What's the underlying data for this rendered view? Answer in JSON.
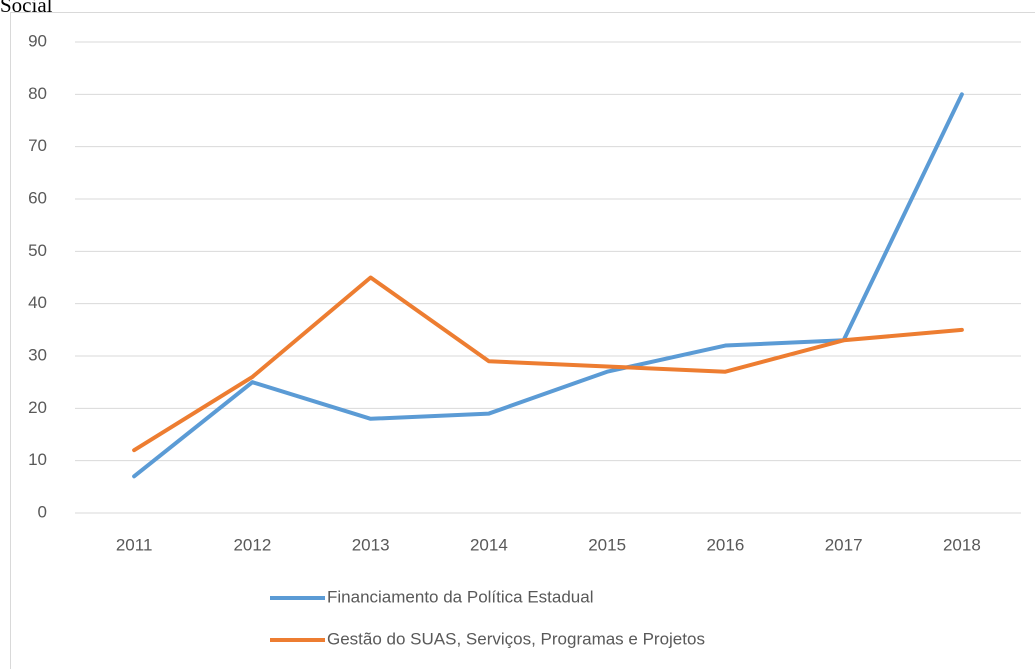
{
  "chart_data": {
    "type": "line",
    "title": "Social",
    "categories": [
      "2011",
      "2012",
      "2013",
      "2014",
      "2015",
      "2016",
      "2017",
      "2018"
    ],
    "series": [
      {
        "name": "Financiamento da Política Estadual",
        "color": "#5b9bd5",
        "values": [
          7,
          25,
          18,
          19,
          27,
          32,
          33,
          80
        ]
      },
      {
        "name": "Gestão do SUAS, Serviços, Programas e Projetos",
        "color": "#ed7d31",
        "values": [
          12,
          26,
          45,
          29,
          28,
          27,
          33,
          35
        ]
      }
    ],
    "ylim": [
      0,
      90
    ],
    "yticks": [
      0,
      10,
      20,
      30,
      40,
      50,
      60,
      70,
      80,
      90
    ],
    "grid": true,
    "legend": "bottom"
  }
}
